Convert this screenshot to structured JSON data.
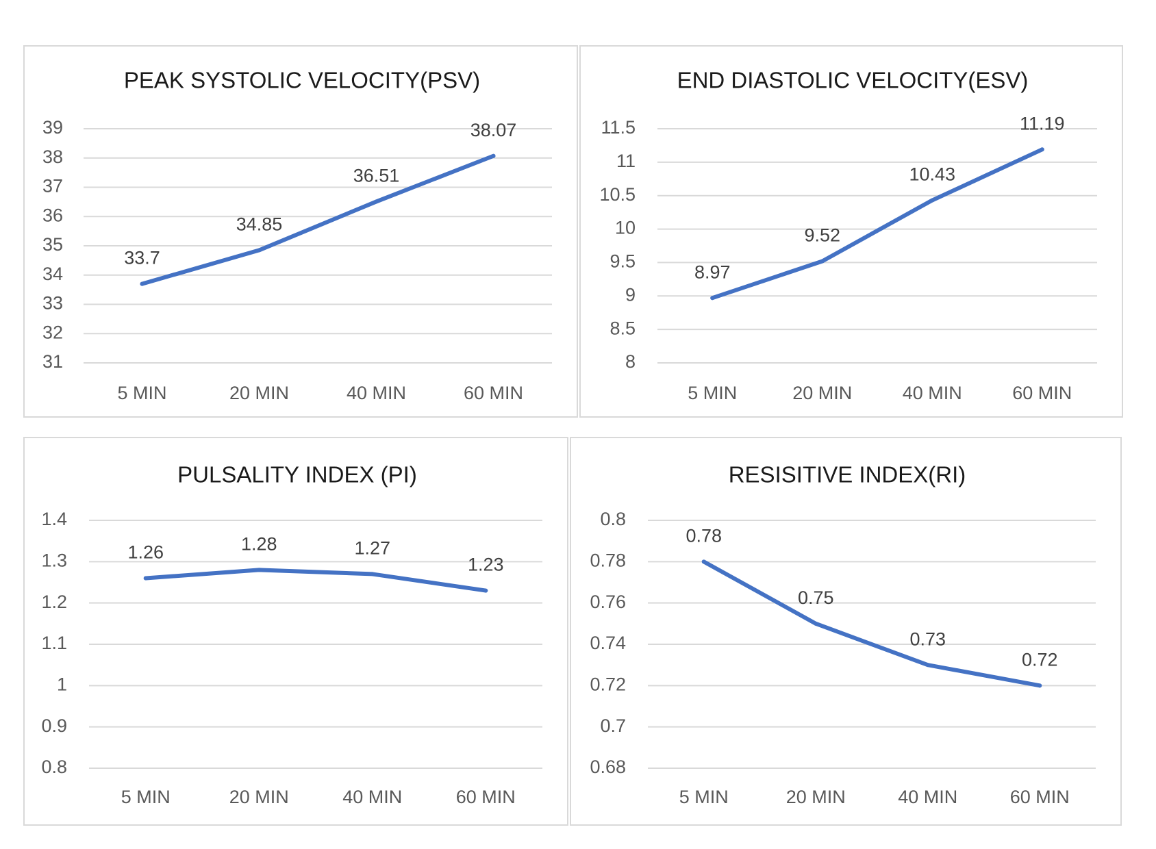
{
  "chart_data": [
    {
      "type": "line",
      "title": "PEAK SYSTOLIC VELOCITY(PSV)",
      "categories": [
        "5 MIN",
        "20 MIN",
        "40 MIN",
        "60 MIN"
      ],
      "values": [
        33.7,
        34.85,
        36.51,
        38.07
      ],
      "yticks": [
        "31",
        "32",
        "33",
        "34",
        "35",
        "36",
        "37",
        "38",
        "39"
      ],
      "ylim": [
        31,
        39
      ],
      "grid": true,
      "legend": "none",
      "line_color": "#4472c4"
    },
    {
      "type": "line",
      "title": "END DIASTOLIC VELOCITY(ESV)",
      "categories": [
        "5 MIN",
        "20 MIN",
        "40 MIN",
        "60 MIN"
      ],
      "values": [
        8.97,
        9.52,
        10.43,
        11.19
      ],
      "yticks": [
        "8",
        "8.5",
        "9",
        "9.5",
        "10",
        "10.5",
        "11",
        "11.5"
      ],
      "ylim": [
        8,
        11.5
      ],
      "grid": true,
      "legend": "none",
      "line_color": "#4472c4"
    },
    {
      "type": "line",
      "title": "PULSALITY INDEX (PI)",
      "categories": [
        "5 MIN",
        "20 MIN",
        "40 MIN",
        "60 MIN"
      ],
      "values": [
        1.26,
        1.28,
        1.27,
        1.23
      ],
      "yticks": [
        "0.8",
        "0.9",
        "1",
        "1.1",
        "1.2",
        "1.3",
        "1.4"
      ],
      "ylim": [
        0.8,
        1.4
      ],
      "grid": true,
      "legend": "none",
      "line_color": "#4472c4"
    },
    {
      "type": "line",
      "title": "RESISITIVE INDEX(RI)",
      "categories": [
        "5 MIN",
        "20 MIN",
        "40 MIN",
        "60 MIN"
      ],
      "values": [
        0.78,
        0.75,
        0.73,
        0.72
      ],
      "yticks": [
        "0.68",
        "0.7",
        "0.72",
        "0.74",
        "0.76",
        "0.78",
        "0.8"
      ],
      "ylim": [
        0.68,
        0.8
      ],
      "grid": true,
      "legend": "none",
      "line_color": "#4472c4"
    }
  ]
}
